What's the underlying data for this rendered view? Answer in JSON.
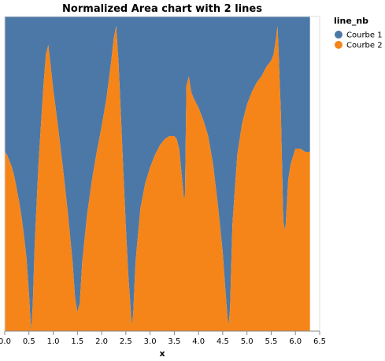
{
  "chart_data": {
    "type": "area",
    "stacking": "normalized",
    "title": "Normalized Area chart with 2 lines",
    "xlabel": "x",
    "ylabel": "",
    "xlim": [
      0,
      6.5
    ],
    "ylim": [
      0,
      1
    ],
    "x_ticks": [
      "0.0",
      "0.5",
      "1.0",
      "1.5",
      "2.0",
      "2.5",
      "3.0",
      "3.5",
      "4.0",
      "4.5",
      "5.0",
      "5.5",
      "6.0",
      "6.5"
    ],
    "grid": false,
    "legend": {
      "title": "line_nb",
      "position": "right"
    },
    "series": [
      {
        "name": "Courbe 1",
        "color": "#4c78a8"
      },
      {
        "name": "Courbe 2",
        "color": "#f58518",
        "share": [
          [
            0.0,
            0.57
          ],
          [
            0.05,
            0.56
          ],
          [
            0.1,
            0.54
          ],
          [
            0.15,
            0.52
          ],
          [
            0.2,
            0.49
          ],
          [
            0.25,
            0.45
          ],
          [
            0.3,
            0.41
          ],
          [
            0.35,
            0.36
          ],
          [
            0.4,
            0.3
          ],
          [
            0.45,
            0.23
          ],
          [
            0.5,
            0.12
          ],
          [
            0.53,
            0.04
          ],
          [
            0.55,
            0.0
          ],
          [
            0.58,
            0.09
          ],
          [
            0.62,
            0.28
          ],
          [
            0.7,
            0.54
          ],
          [
            0.8,
            0.78
          ],
          [
            0.85,
            0.88
          ],
          [
            0.9,
            0.91
          ],
          [
            0.95,
            0.84
          ],
          [
            1.0,
            0.77
          ],
          [
            1.1,
            0.65
          ],
          [
            1.2,
            0.52
          ],
          [
            1.3,
            0.38
          ],
          [
            1.4,
            0.22
          ],
          [
            1.45,
            0.11
          ],
          [
            1.5,
            0.06
          ],
          [
            1.55,
            0.09
          ],
          [
            1.6,
            0.22
          ],
          [
            1.7,
            0.37
          ],
          [
            1.8,
            0.48
          ],
          [
            1.9,
            0.57
          ],
          [
            2.0,
            0.65
          ],
          [
            2.1,
            0.74
          ],
          [
            2.2,
            0.86
          ],
          [
            2.25,
            0.93
          ],
          [
            2.3,
            0.97
          ],
          [
            2.35,
            0.85
          ],
          [
            2.4,
            0.68
          ],
          [
            2.45,
            0.5
          ],
          [
            2.5,
            0.33
          ],
          [
            2.55,
            0.18
          ],
          [
            2.6,
            0.07
          ],
          [
            2.62,
            0.02
          ],
          [
            2.65,
            0.05
          ],
          [
            2.7,
            0.22
          ],
          [
            2.8,
            0.39
          ],
          [
            2.9,
            0.47
          ],
          [
            3.0,
            0.52
          ],
          [
            3.1,
            0.56
          ],
          [
            3.2,
            0.59
          ],
          [
            3.3,
            0.61
          ],
          [
            3.4,
            0.62
          ],
          [
            3.5,
            0.62
          ],
          [
            3.55,
            0.61
          ],
          [
            3.6,
            0.58
          ],
          [
            3.65,
            0.5
          ],
          [
            3.7,
            0.42
          ],
          [
            3.72,
            0.43
          ],
          [
            3.75,
            0.78
          ],
          [
            3.8,
            0.81
          ],
          [
            3.83,
            0.78
          ],
          [
            3.85,
            0.76
          ],
          [
            3.9,
            0.74
          ],
          [
            4.0,
            0.71
          ],
          [
            4.1,
            0.67
          ],
          [
            4.2,
            0.62
          ],
          [
            4.3,
            0.53
          ],
          [
            4.4,
            0.4
          ],
          [
            4.5,
            0.25
          ],
          [
            4.55,
            0.14
          ],
          [
            4.6,
            0.04
          ],
          [
            4.62,
            0.02
          ],
          [
            4.65,
            0.07
          ],
          [
            4.7,
            0.34
          ],
          [
            4.8,
            0.56
          ],
          [
            4.9,
            0.66
          ],
          [
            5.0,
            0.72
          ],
          [
            5.1,
            0.76
          ],
          [
            5.2,
            0.79
          ],
          [
            5.3,
            0.81
          ],
          [
            5.4,
            0.84
          ],
          [
            5.5,
            0.86
          ],
          [
            5.55,
            0.88
          ],
          [
            5.6,
            0.93
          ],
          [
            5.63,
            0.97
          ],
          [
            5.65,
            0.9
          ],
          [
            5.7,
            0.69
          ],
          [
            5.75,
            0.35
          ],
          [
            5.78,
            0.32
          ],
          [
            5.8,
            0.34
          ],
          [
            5.85,
            0.48
          ],
          [
            5.9,
            0.53
          ],
          [
            6.0,
            0.58
          ],
          [
            6.1,
            0.58
          ],
          [
            6.2,
            0.57
          ],
          [
            6.3,
            0.57
          ]
        ]
      }
    ]
  }
}
